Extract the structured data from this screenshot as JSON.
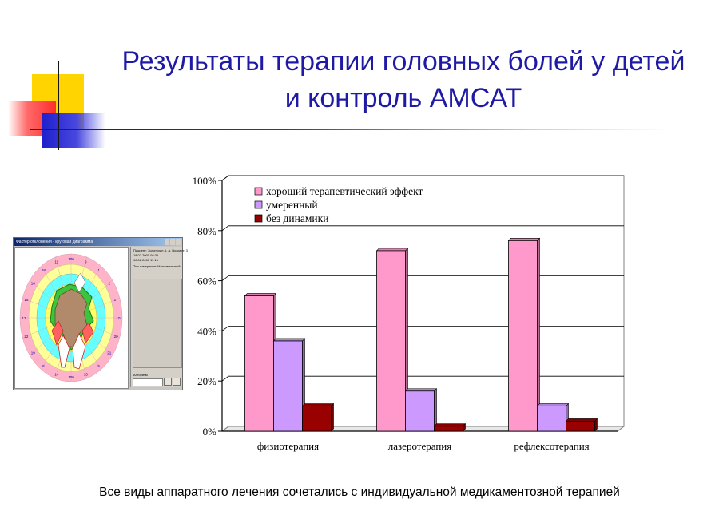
{
  "slide": {
    "title_line1": "Результаты терапии головных болей у детей",
    "title_line2": "и контроль АМСАТ",
    "footnote": "Все виды аппаратного лечения сочетались с индивидуальной медикаментозной терапией"
  },
  "thumbnail": {
    "window_title": "Фактор отклонения - круговая диаграмма",
    "info_lines": [
      "Пациент: Золотухин А. А. Возраст: 3",
      "18.07.2001 08:35",
      "10.08.2001 11:16",
      "Тип измерения: Максимальный"
    ],
    "status_label": "Алгоритм",
    "ring_labels": [
      "100",
      "9",
      "1",
      "2",
      "17",
      "10",
      "20",
      "21",
      "5",
      "13",
      "100",
      "14",
      "8",
      "19",
      "22",
      "12",
      "15",
      "16",
      "18",
      "11"
    ]
  },
  "chart_data": {
    "type": "bar",
    "categories": [
      "физиотерапия",
      "лазеротерапия",
      "рефлексотерапия"
    ],
    "series": [
      {
        "name": "хороший терапевтический эффект",
        "values": [
          54,
          72,
          76
        ],
        "color": "#ff99cc"
      },
      {
        "name": "умеренный",
        "values": [
          36,
          16,
          10
        ],
        "color": "#cc99ff"
      },
      {
        "name": "без динамики",
        "values": [
          10,
          2,
          4
        ],
        "color": "#990000"
      }
    ],
    "y_ticks": [
      "0%",
      "20%",
      "40%",
      "60%",
      "80%",
      "100%"
    ],
    "ylim": [
      0,
      100
    ],
    "grid": true,
    "legend_position": "top-left"
  }
}
